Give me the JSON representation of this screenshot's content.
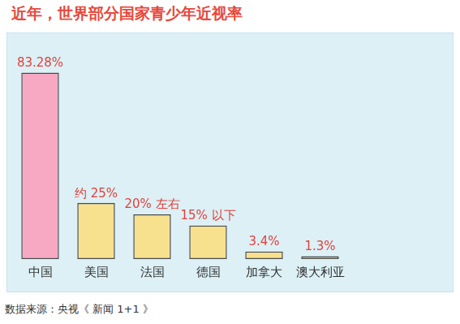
{
  "chart_data": {
    "type": "bar",
    "title": "近年，世界部分国家青少年近视率",
    "source": "数据来源：央视《 新闻 1+1 》",
    "categories": [
      "中国",
      "美国",
      "法国",
      "德国",
      "加拿大",
      "澳大利亚"
    ],
    "values": [
      83.28,
      25,
      20,
      15,
      3.4,
      1.3
    ],
    "value_labels": [
      "83.28%",
      "约 25%",
      "20% 左右",
      "15% 以下",
      "3.4%",
      "1.3%"
    ],
    "colors": [
      "#f7a9c4",
      "#f8e18e",
      "#f8e18e",
      "#f8e18e",
      "#f8e18e",
      "#f8e18e"
    ],
    "data_labels": true,
    "grid": false,
    "tick_labels": "x"
  }
}
